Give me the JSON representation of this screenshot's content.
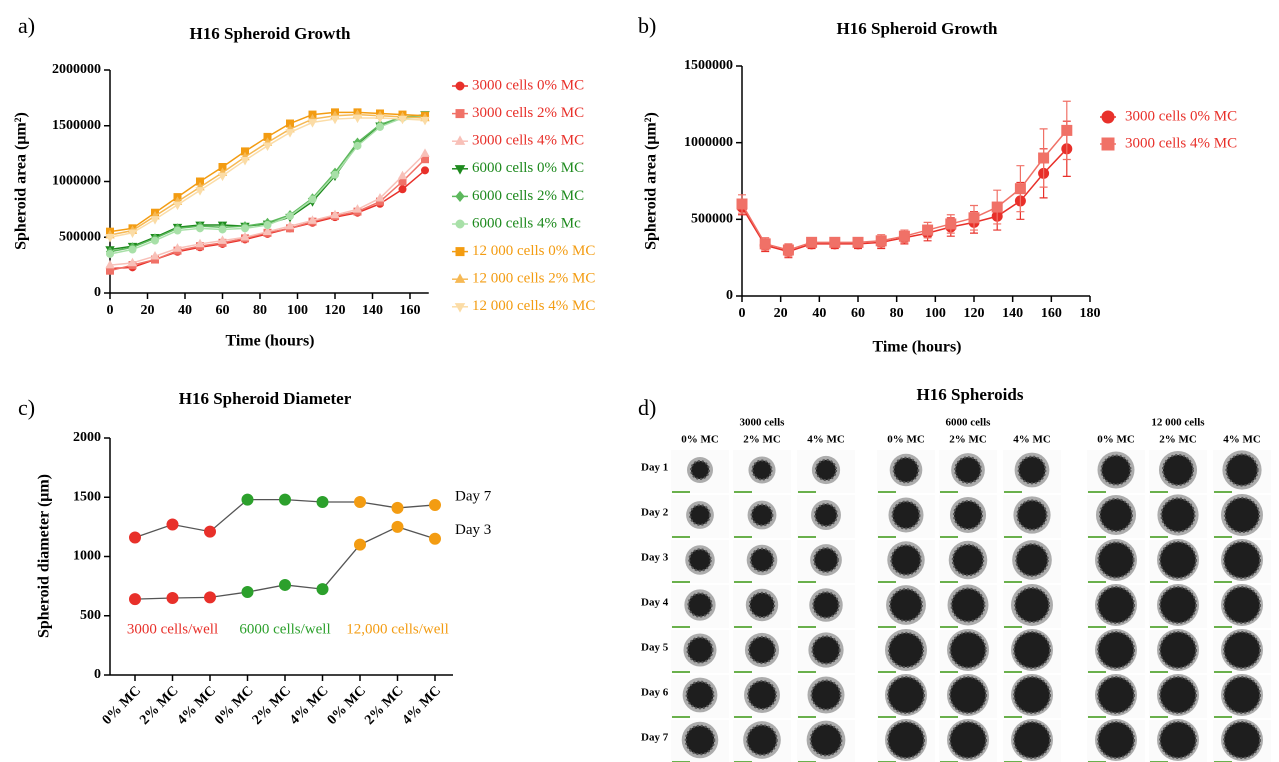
{
  "chart_data": [
    {
      "type": "line",
      "panel_label": "a)",
      "title": "H16 Spheroid Growth",
      "x_label": "Time (hours)",
      "y_label": "Spheroid area (μm²)",
      "x": [
        0,
        12,
        24,
        36,
        48,
        60,
        72,
        84,
        96,
        108,
        120,
        132,
        144,
        156,
        168
      ],
      "xlim": [
        0,
        170
      ],
      "xticks": [
        0,
        20,
        40,
        60,
        80,
        100,
        120,
        140,
        160
      ],
      "ylim": [
        0,
        2000000
      ],
      "yticks": [
        0,
        500000,
        1000000,
        1500000,
        2000000
      ],
      "legend": "right",
      "series": [
        {
          "name": "3000 cells 0% MC",
          "color": "#e8302a",
          "legend_text_color": "#e8302a",
          "marker": "circle",
          "values": [
            220000,
            230000,
            300000,
            370000,
            410000,
            440000,
            480000,
            530000,
            580000,
            630000,
            680000,
            720000,
            800000,
            930000,
            1100000
          ]
        },
        {
          "name": "3000 cells 2% MC",
          "color": "#f07167",
          "legend_text_color": "#e8302a",
          "marker": "square",
          "values": [
            200000,
            250000,
            300000,
            380000,
            420000,
            450000,
            490000,
            540000,
            580000,
            640000,
            690000,
            730000,
            820000,
            1000000,
            1200000
          ]
        },
        {
          "name": "3000 cells 4% MC",
          "color": "#f8c0b8",
          "legend_text_color": "#e8302a",
          "marker": "triangle",
          "values": [
            250000,
            270000,
            330000,
            400000,
            440000,
            470000,
            500000,
            550000,
            600000,
            650000,
            700000,
            750000,
            850000,
            1050000,
            1250000
          ]
        },
        {
          "name": "6000 cells 0% MC",
          "color": "#1e8a1e",
          "legend_text_color": "#1e8a1e",
          "marker": "triangle-down",
          "values": [
            390000,
            420000,
            500000,
            590000,
            610000,
            610000,
            600000,
            620000,
            680000,
            820000,
            1050000,
            1330000,
            1500000,
            1570000,
            1600000
          ]
        },
        {
          "name": "6000 cells 2% MC",
          "color": "#5cb85c",
          "legend_text_color": "#1e8a1e",
          "marker": "diamond",
          "values": [
            370000,
            410000,
            490000,
            580000,
            600000,
            590000,
            600000,
            630000,
            700000,
            850000,
            1080000,
            1350000,
            1510000,
            1580000,
            1590000
          ]
        },
        {
          "name": "6000 cells 4% Mc",
          "color": "#a8e0a8",
          "legend_text_color": "#1e8a1e",
          "marker": "circle",
          "values": [
            350000,
            390000,
            470000,
            560000,
            580000,
            570000,
            580000,
            610000,
            690000,
            840000,
            1060000,
            1320000,
            1490000,
            1570000,
            1580000
          ]
        },
        {
          "name": "12 000 cells 0% MC",
          "color": "#f39c12",
          "legend_text_color": "#f39c12",
          "marker": "square",
          "values": [
            550000,
            580000,
            720000,
            860000,
            1000000,
            1130000,
            1270000,
            1400000,
            1520000,
            1600000,
            1620000,
            1620000,
            1610000,
            1600000,
            1590000
          ]
        },
        {
          "name": "12 000 cells 2% MC",
          "color": "#f6b955",
          "legend_text_color": "#f39c12",
          "marker": "triangle",
          "values": [
            520000,
            560000,
            690000,
            820000,
            950000,
            1080000,
            1220000,
            1350000,
            1470000,
            1560000,
            1590000,
            1600000,
            1590000,
            1580000,
            1570000
          ]
        },
        {
          "name": "12 000 cells 4% MC",
          "color": "#fbdca6",
          "legend_text_color": "#f39c12",
          "marker": "triangle-down",
          "values": [
            500000,
            540000,
            660000,
            790000,
            920000,
            1050000,
            1190000,
            1320000,
            1440000,
            1530000,
            1560000,
            1570000,
            1570000,
            1560000,
            1550000
          ]
        }
      ]
    },
    {
      "type": "line",
      "panel_label": "b)",
      "title": "H16 Spheroid Growth",
      "x_label": "Time (hours)",
      "y_label": "Spheroid area (μm²)",
      "x": [
        0,
        12,
        24,
        36,
        48,
        60,
        72,
        84,
        96,
        108,
        120,
        132,
        144,
        156,
        168
      ],
      "xlim": [
        0,
        180
      ],
      "xticks": [
        0,
        20,
        40,
        60,
        80,
        100,
        120,
        140,
        160,
        180
      ],
      "ylim": [
        0,
        1500000
      ],
      "yticks": [
        0,
        500000,
        1000000,
        1500000
      ],
      "legend": "right",
      "series": [
        {
          "name": "3000 cells 0% MC",
          "color": "#e8302a",
          "legend_text_color": "#e8302a",
          "marker": "circle",
          "values": [
            580000,
            330000,
            290000,
            340000,
            340000,
            340000,
            350000,
            380000,
            410000,
            450000,
            480000,
            520000,
            620000,
            800000,
            960000
          ],
          "errors": [
            50000,
            40000,
            40000,
            30000,
            30000,
            30000,
            40000,
            40000,
            50000,
            60000,
            70000,
            90000,
            120000,
            160000,
            180000
          ]
        },
        {
          "name": "3000 cells 4% MC",
          "color": "#f07167",
          "legend_text_color": "#e8302a",
          "marker": "square",
          "values": [
            600000,
            340000,
            300000,
            350000,
            350000,
            350000,
            360000,
            390000,
            430000,
            470000,
            510000,
            580000,
            700000,
            900000,
            1080000
          ],
          "errors": [
            60000,
            40000,
            40000,
            30000,
            30000,
            30000,
            40000,
            40000,
            50000,
            60000,
            80000,
            110000,
            150000,
            190000,
            190000
          ]
        }
      ]
    },
    {
      "type": "line",
      "panel_label": "c)",
      "title": "H16 Spheroid Diameter",
      "y_label": "Spheroid diameter (μm)",
      "categories": [
        "0% MC",
        "2% MC",
        "4% MC",
        "0% MC",
        "2% MC",
        "4% MC",
        "0% MC",
        "2% MC",
        "4% MC"
      ],
      "ylim": [
        0,
        2000
      ],
      "yticks": [
        0,
        500,
        1000,
        1500,
        2000
      ],
      "line_color": "#555555",
      "group_labels": [
        {
          "text": "3000 cells/well",
          "color": "#e8302a"
        },
        {
          "text": "6000 cells/well",
          "color": "#2ca02c"
        },
        {
          "text": "12,000 cells/well",
          "color": "#f39c12"
        }
      ],
      "series": [
        {
          "name": "Day 7",
          "values": [
            1160,
            1270,
            1210,
            1480,
            1480,
            1460,
            1460,
            1410,
            1435
          ],
          "point_colors": [
            "#e8302a",
            "#e8302a",
            "#e8302a",
            "#2ca02c",
            "#2ca02c",
            "#2ca02c",
            "#f39c12",
            "#f39c12",
            "#f39c12"
          ]
        },
        {
          "name": "Day 3",
          "values": [
            640,
            650,
            655,
            700,
            760,
            725,
            1100,
            1250,
            1150
          ],
          "point_colors": [
            "#e8302a",
            "#e8302a",
            "#e8302a",
            "#2ca02c",
            "#2ca02c",
            "#2ca02c",
            "#f39c12",
            "#f39c12",
            "#f39c12"
          ]
        }
      ]
    }
  ],
  "image_panel": {
    "panel_label": "d)",
    "title": "H16 Spheroids",
    "groups": [
      {
        "label": "3000 cells",
        "columns": [
          "0% MC",
          "2% MC",
          "4% MC"
        ]
      },
      {
        "label": "6000 cells",
        "columns": [
          "0% MC",
          "2% MC",
          "4% MC"
        ]
      },
      {
        "label": "12 000 cells",
        "columns": [
          "0% MC",
          "2% MC",
          "4% MC"
        ]
      }
    ],
    "rows": [
      "Day 1",
      "Day 2",
      "Day 3",
      "Day 4",
      "Day 5",
      "Day 6",
      "Day 7"
    ]
  }
}
